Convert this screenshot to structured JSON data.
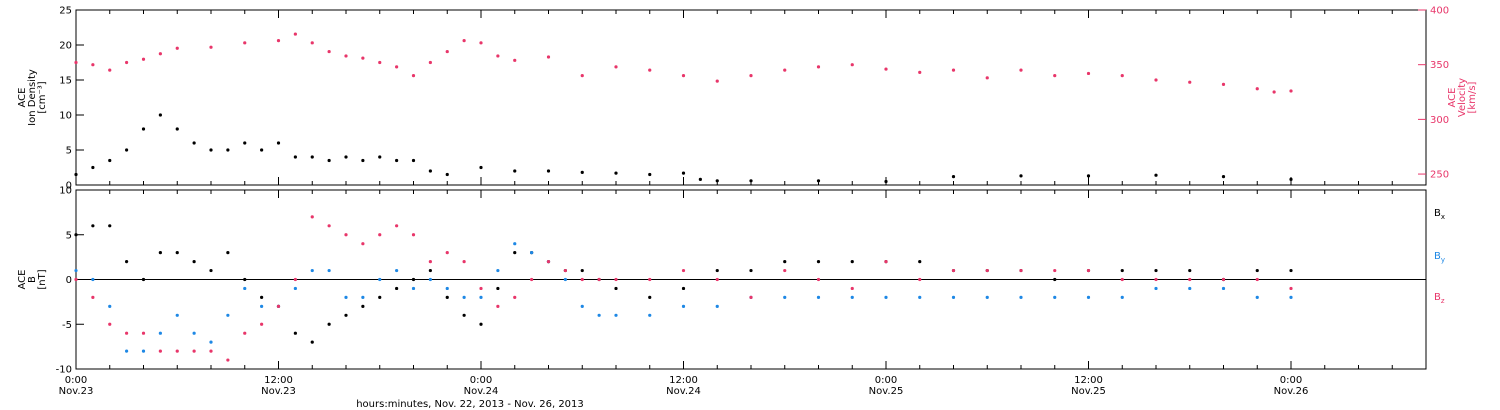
{
  "figure": {
    "xlabel": "hours:minutes, Nov. 22, 2013 - Nov. 26, 2013"
  },
  "colors": {
    "black": "#000000",
    "blue": "#1e88e5",
    "pink": "#e8366a"
  },
  "chart_data": [
    {
      "type": "scatter",
      "panel": "top",
      "left_axis": {
        "label_lines": [
          "ACE",
          "Ion Density",
          "[cm⁻³]"
        ],
        "ylim": [
          0,
          25
        ],
        "ticks": [
          0,
          5,
          10,
          15,
          20,
          25
        ]
      },
      "right_axis": {
        "label_lines": [
          "ACE",
          "Velocity",
          "[km/s]"
        ],
        "ylim": [
          240,
          400
        ],
        "ticks": [
          250,
          300,
          350,
          400
        ]
      },
      "x_hours_range": [
        0,
        80
      ],
      "x_ticks": [
        {
          "h": 0,
          "time": "0:00",
          "date": "Nov.23"
        },
        {
          "h": 12,
          "time": "12:00",
          "date": "Nov.23"
        },
        {
          "h": 24,
          "time": "0:00",
          "date": "Nov.24"
        },
        {
          "h": 36,
          "time": "12:00",
          "date": "Nov.24"
        },
        {
          "h": 48,
          "time": "0:00",
          "date": "Nov.25"
        },
        {
          "h": 60,
          "time": "12:00",
          "date": "Nov.25"
        },
        {
          "h": 72,
          "time": "0:00",
          "date": "Nov.26"
        }
      ],
      "series": [
        {
          "color": "pink",
          "axis": "right",
          "x": [
            0,
            1,
            2,
            3,
            4,
            5,
            6,
            8,
            10,
            12,
            13,
            14,
            15,
            16,
            17,
            18,
            19,
            20,
            21,
            22,
            23,
            24,
            25,
            26,
            28,
            30,
            32,
            34,
            36,
            38,
            40,
            42,
            44,
            46,
            48,
            50,
            52,
            54,
            56,
            58,
            60,
            62,
            64,
            66,
            68,
            70,
            71,
            72
          ],
          "y": [
            352,
            350,
            345,
            352,
            355,
            360,
            365,
            366,
            370,
            372,
            378,
            370,
            362,
            358,
            356,
            352,
            348,
            340,
            352,
            362,
            372,
            370,
            358,
            354,
            357,
            340,
            348,
            345,
            340,
            335,
            340,
            345,
            348,
            350,
            346,
            343,
            345,
            338,
            345,
            340,
            342,
            340,
            336,
            334,
            332,
            328,
            325,
            326
          ]
        },
        {
          "color": "black",
          "axis": "left",
          "x": [
            0,
            1,
            2,
            3,
            4,
            5,
            6,
            7,
            8,
            9,
            10,
            11,
            12,
            13,
            14,
            15,
            16,
            17,
            18,
            19,
            20,
            21,
            22,
            24,
            26,
            28,
            30,
            32,
            34,
            36,
            37,
            38,
            40,
            44,
            48,
            52,
            56,
            60,
            64,
            68,
            72
          ],
          "y": [
            1.5,
            2.5,
            3.5,
            5,
            8,
            10,
            8,
            6,
            5,
            5,
            6,
            5,
            6,
            4,
            4,
            3.5,
            4,
            3.5,
            4,
            3.5,
            3.5,
            2,
            1.5,
            2.5,
            2,
            2,
            1.8,
            1.7,
            1.5,
            1.7,
            0.8,
            0.6,
            0.6,
            0.6,
            0.5,
            1.2,
            1.3,
            1.3,
            1.4,
            1.2,
            0.8
          ]
        }
      ]
    },
    {
      "type": "scatter",
      "panel": "bottom",
      "left_axis": {
        "label_lines": [
          "ACE",
          "B",
          "[nT]"
        ],
        "ylim": [
          -10,
          10
        ],
        "ticks": [
          -10,
          -5,
          0,
          5,
          10
        ]
      },
      "x_hours_range": [
        0,
        80
      ],
      "legend": [
        {
          "label": "B",
          "sub": "x",
          "color": "black"
        },
        {
          "label": "B",
          "sub": "y",
          "color": "blue"
        },
        {
          "label": "B",
          "sub": "z",
          "color": "pink"
        }
      ],
      "series": [
        {
          "name": "Bx",
          "color": "black",
          "x": [
            0,
            1,
            2,
            3,
            4,
            5,
            6,
            7,
            8,
            9,
            10,
            11,
            12,
            13,
            14,
            15,
            16,
            17,
            18,
            19,
            20,
            21,
            22,
            23,
            24,
            25,
            26,
            27,
            28,
            29,
            30,
            31,
            32,
            34,
            36,
            38,
            40,
            42,
            44,
            46,
            48,
            50,
            52,
            54,
            56,
            58,
            60,
            62,
            64,
            66,
            68,
            70,
            72
          ],
          "y": [
            5,
            6,
            6,
            2,
            0,
            3,
            3,
            2,
            1,
            3,
            0,
            -2,
            -3,
            -6,
            -7,
            -5,
            -4,
            -3,
            -2,
            -1,
            0,
            1,
            -2,
            -4,
            -5,
            -1,
            3,
            3,
            2,
            1,
            1,
            0,
            -1,
            -2,
            -1,
            1,
            1,
            2,
            2,
            2,
            2,
            2,
            1,
            1,
            1,
            0,
            1,
            1,
            1,
            1,
            0,
            1,
            1
          ]
        },
        {
          "name": "By",
          "color": "blue",
          "x": [
            0,
            1,
            2,
            3,
            4,
            5,
            6,
            7,
            8,
            9,
            10,
            11,
            12,
            13,
            14,
            15,
            16,
            17,
            18,
            19,
            20,
            21,
            22,
            23,
            24,
            25,
            26,
            27,
            28,
            29,
            30,
            31,
            32,
            34,
            36,
            38,
            40,
            42,
            44,
            46,
            48,
            50,
            52,
            54,
            56,
            58,
            60,
            62,
            64,
            66,
            68,
            70,
            72
          ],
          "y": [
            1,
            0,
            -3,
            -8,
            -8,
            -6,
            -4,
            -6,
            -7,
            -4,
            -1,
            -3,
            -3,
            -1,
            1,
            1,
            -2,
            -2,
            0,
            1,
            -1,
            0,
            -1,
            -2,
            -2,
            1,
            4,
            3,
            2,
            0,
            -3,
            -4,
            -4,
            -4,
            -3,
            -3,
            -2,
            -2,
            -2,
            -2,
            -2,
            -2,
            -2,
            -2,
            -2,
            -2,
            -2,
            -2,
            -1,
            -1,
            -1,
            -2,
            -2
          ]
        },
        {
          "name": "Bz",
          "color": "pink",
          "x": [
            0,
            1,
            2,
            3,
            4,
            5,
            6,
            7,
            8,
            9,
            10,
            11,
            12,
            13,
            14,
            15,
            16,
            17,
            18,
            19,
            20,
            21,
            22,
            23,
            24,
            25,
            26,
            27,
            28,
            29,
            30,
            31,
            32,
            34,
            36,
            38,
            40,
            42,
            44,
            46,
            48,
            50,
            52,
            54,
            56,
            58,
            60,
            62,
            64,
            66,
            68,
            70,
            72
          ],
          "y": [
            0,
            -2,
            -5,
            -6,
            -6,
            -8,
            -8,
            -8,
            -8,
            -9,
            -6,
            -5,
            -3,
            0,
            7,
            6,
            5,
            4,
            5,
            6,
            5,
            2,
            3,
            2,
            -1,
            -3,
            -2,
            0,
            2,
            1,
            0,
            0,
            0,
            0,
            1,
            0,
            -2,
            1,
            0,
            -1,
            2,
            0,
            1,
            1,
            1,
            1,
            1,
            0,
            0,
            0,
            0,
            0,
            -1
          ]
        }
      ]
    }
  ]
}
